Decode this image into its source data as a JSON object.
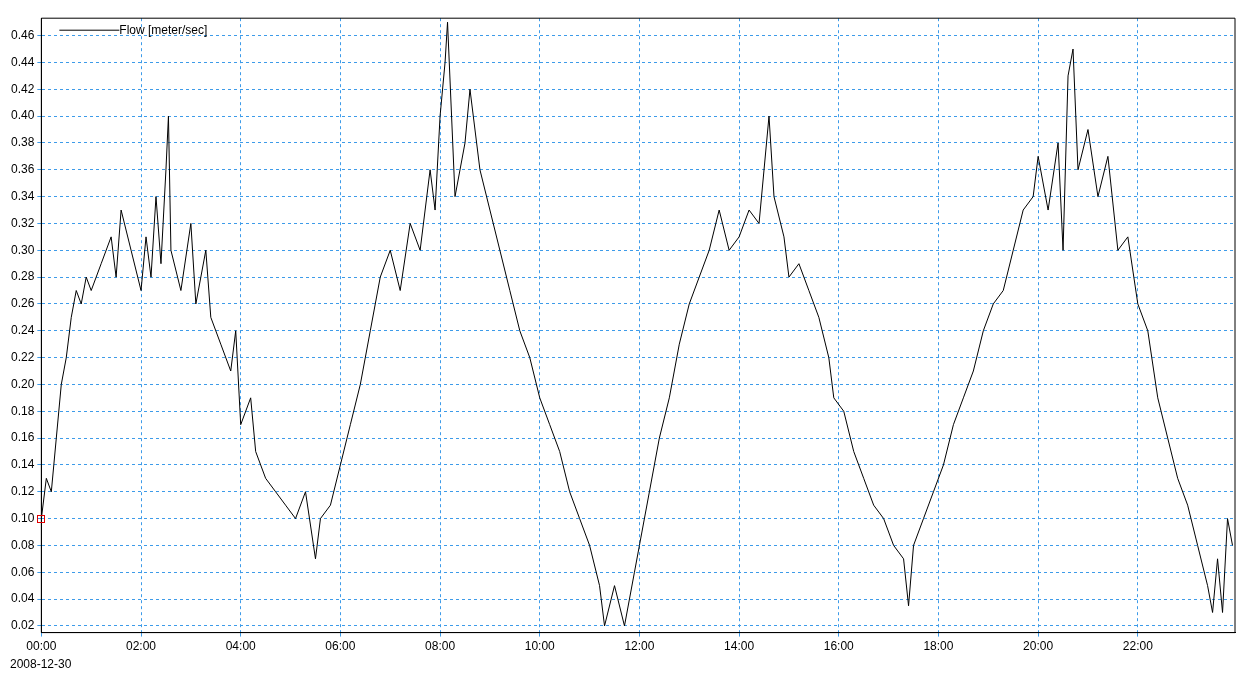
{
  "chart_data": {
    "type": "line",
    "legend": "top left",
    "grid": true,
    "marker": "none",
    "line_style": "solid",
    "annotations": [
      "2008-12-30"
    ],
    "xlim": [
      0,
      23.95
    ],
    "ylim": [
      0.015,
      0.473
    ],
    "xticks": [
      {
        "value": 0,
        "label": "00:00"
      },
      {
        "value": 2,
        "label": "02:00"
      },
      {
        "value": 4,
        "label": "04:00"
      },
      {
        "value": 6,
        "label": "06:00"
      },
      {
        "value": 8,
        "label": "08:00"
      },
      {
        "value": 10,
        "label": "10:00"
      },
      {
        "value": 12,
        "label": "12:00"
      },
      {
        "value": 14,
        "label": "14:00"
      },
      {
        "value": 16,
        "label": "16:00"
      },
      {
        "value": 18,
        "label": "18:00"
      },
      {
        "value": 20,
        "label": "20:00"
      },
      {
        "value": 22,
        "label": "22:00"
      }
    ],
    "yticks": [
      {
        "value": 0.02,
        "label": "0.02"
      },
      {
        "value": 0.04,
        "label": "0.04"
      },
      {
        "value": 0.06,
        "label": "0.06"
      },
      {
        "value": 0.08,
        "label": "0.08"
      },
      {
        "value": 0.1,
        "label": "0.10"
      },
      {
        "value": 0.12,
        "label": "0.12"
      },
      {
        "value": 0.14,
        "label": "0.14"
      },
      {
        "value": 0.16,
        "label": "0.16"
      },
      {
        "value": 0.18,
        "label": "0.18"
      },
      {
        "value": 0.2,
        "label": "0.20"
      },
      {
        "value": 0.22,
        "label": "0.22"
      },
      {
        "value": 0.24,
        "label": "0.24"
      },
      {
        "value": 0.26,
        "label": "0.26"
      },
      {
        "value": 0.28,
        "label": "0.28"
      },
      {
        "value": 0.3,
        "label": "0.30"
      },
      {
        "value": 0.32,
        "label": "0.32"
      },
      {
        "value": 0.34,
        "label": "0.34"
      },
      {
        "value": 0.36,
        "label": "0.36"
      },
      {
        "value": 0.38,
        "label": "0.38"
      },
      {
        "value": 0.4,
        "label": "0.40"
      },
      {
        "value": 0.42,
        "label": "0.42"
      },
      {
        "value": 0.44,
        "label": "0.44"
      },
      {
        "value": 0.46,
        "label": "0.46"
      }
    ],
    "x": [
      0,
      0.1,
      0.2,
      0.3,
      0.4,
      0.5,
      0.6,
      0.7,
      0.8,
      0.9,
      1.0,
      1.2,
      1.4,
      1.5,
      1.6,
      1.8,
      2.0,
      2.1,
      2.2,
      2.3,
      2.4,
      2.5,
      2.55,
      2.6,
      2.8,
      3.0,
      3.1,
      3.3,
      3.4,
      3.6,
      3.8,
      3.9,
      4.0,
      4.2,
      4.3,
      4.5,
      4.7,
      4.9,
      5.1,
      5.3,
      5.5,
      5.6,
      5.8,
      6.0,
      6.2,
      6.4,
      6.6,
      6.8,
      7.0,
      7.2,
      7.4,
      7.6,
      7.8,
      7.9,
      8.0,
      8.1,
      8.15,
      8.3,
      8.5,
      8.6,
      8.8,
      9.0,
      9.2,
      9.4,
      9.6,
      9.8,
      10.0,
      10.2,
      10.4,
      10.6,
      10.8,
      11.0,
      11.2,
      11.3,
      11.5,
      11.7,
      11.9,
      12.0,
      12.2,
      12.4,
      12.6,
      12.8,
      13.0,
      13.2,
      13.4,
      13.6,
      13.8,
      14.0,
      14.2,
      14.4,
      14.6,
      14.7,
      14.9,
      15.0,
      15.2,
      15.4,
      15.6,
      15.8,
      15.9,
      16.1,
      16.3,
      16.5,
      16.7,
      16.9,
      17.1,
      17.3,
      17.4,
      17.5,
      17.7,
      17.9,
      18.1,
      18.3,
      18.5,
      18.7,
      18.9,
      19.1,
      19.3,
      19.5,
      19.7,
      19.9,
      20.0,
      20.2,
      20.4,
      20.5,
      20.6,
      20.7,
      20.8,
      21.0,
      21.2,
      21.4,
      21.6,
      21.8,
      22.0,
      22.2,
      22.4,
      22.6,
      22.8,
      23.0,
      23.2,
      23.4,
      23.5,
      23.6,
      23.7,
      23.8,
      23.9
    ],
    "series": [
      {
        "name": "Flow [meter/sec]",
        "color": "#000000",
        "values": [
          0.1,
          0.13,
          0.12,
          0.16,
          0.2,
          0.22,
          0.25,
          0.27,
          0.26,
          0.28,
          0.27,
          0.29,
          0.31,
          0.28,
          0.33,
          0.3,
          0.27,
          0.31,
          0.28,
          0.34,
          0.29,
          0.36,
          0.4,
          0.3,
          0.27,
          0.32,
          0.26,
          0.3,
          0.25,
          0.23,
          0.21,
          0.24,
          0.17,
          0.19,
          0.15,
          0.13,
          0.12,
          0.11,
          0.1,
          0.12,
          0.07,
          0.1,
          0.11,
          0.14,
          0.17,
          0.2,
          0.24,
          0.28,
          0.3,
          0.27,
          0.32,
          0.3,
          0.36,
          0.33,
          0.4,
          0.44,
          0.47,
          0.34,
          0.38,
          0.42,
          0.36,
          0.33,
          0.3,
          0.27,
          0.24,
          0.22,
          0.19,
          0.17,
          0.15,
          0.12,
          0.1,
          0.08,
          0.05,
          0.02,
          0.05,
          0.02,
          0.06,
          0.08,
          0.12,
          0.16,
          0.19,
          0.23,
          0.26,
          0.28,
          0.3,
          0.33,
          0.3,
          0.31,
          0.33,
          0.32,
          0.4,
          0.34,
          0.31,
          0.28,
          0.29,
          0.27,
          0.25,
          0.22,
          0.19,
          0.18,
          0.15,
          0.13,
          0.11,
          0.1,
          0.08,
          0.07,
          0.035,
          0.08,
          0.1,
          0.12,
          0.14,
          0.17,
          0.19,
          0.21,
          0.24,
          0.26,
          0.27,
          0.3,
          0.33,
          0.34,
          0.37,
          0.33,
          0.38,
          0.3,
          0.43,
          0.45,
          0.36,
          0.39,
          0.34,
          0.37,
          0.3,
          0.31,
          0.26,
          0.24,
          0.19,
          0.16,
          0.13,
          0.11,
          0.08,
          0.05,
          0.03,
          0.07,
          0.03,
          0.1,
          0.08
        ]
      }
    ]
  }
}
